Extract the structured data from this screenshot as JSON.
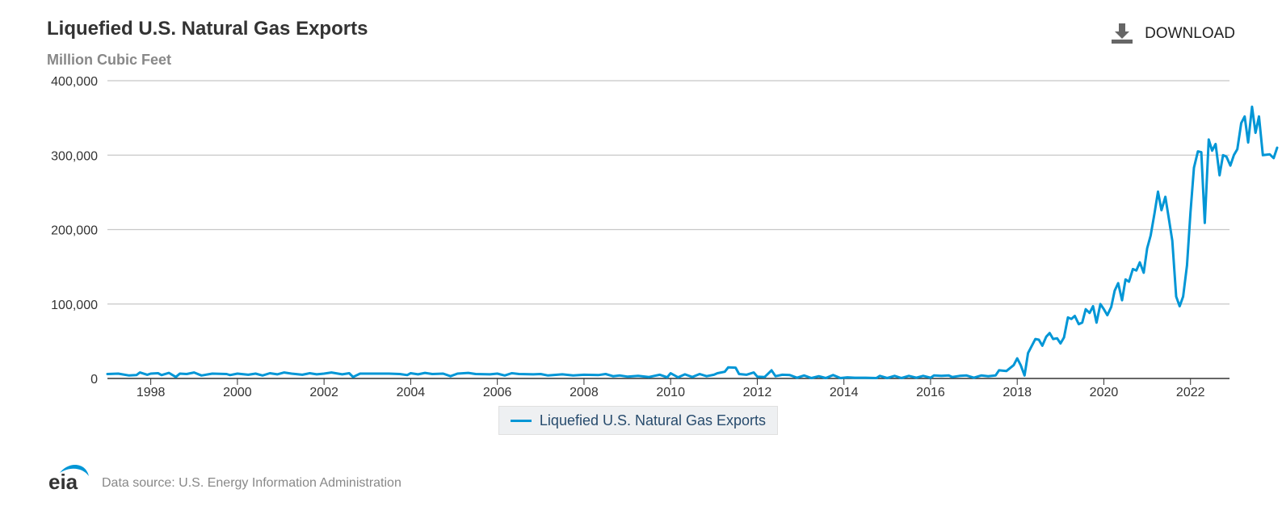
{
  "header": {
    "title": "Liquefied U.S. Natural Gas Exports",
    "subtitle": "Million Cubic Feet",
    "download_label": "DOWNLOAD"
  },
  "footer": {
    "logo_text": "eia",
    "source": "Data source: U.S. Energy Information Administration"
  },
  "colors": {
    "series": "#0096d6",
    "grid": "#c8c8c8",
    "axis": "#333333"
  },
  "chart_data": {
    "type": "line",
    "title": "Liquefied U.S. Natural Gas Exports",
    "subtitle": "Million Cubic Feet",
    "xlabel": "",
    "ylabel": "",
    "xlim": [
      1997,
      2022.9
    ],
    "ylim": [
      0,
      400000
    ],
    "yticks": [
      0,
      100000,
      200000,
      300000,
      400000
    ],
    "ytick_labels": [
      "0",
      "100,000",
      "200,000",
      "300,000",
      "400,000"
    ],
    "xticks": [
      1998,
      2000,
      2002,
      2004,
      2006,
      2008,
      2010,
      2012,
      2014,
      2016,
      2018,
      2020,
      2022
    ],
    "xtick_labels": [
      "1998",
      "2000",
      "2002",
      "2004",
      "2006",
      "2008",
      "2010",
      "2012",
      "2014",
      "2016",
      "2018",
      "2020",
      "2022"
    ],
    "grid": true,
    "legend_position": "bottom-center",
    "series": [
      {
        "name": "Liquefied U.S. Natural Gas Exports",
        "color": "#0096d6",
        "points": [
          [
            1997.0,
            6000
          ],
          [
            1997.25,
            6500
          ],
          [
            1997.5,
            4000
          ],
          [
            1997.67,
            4500
          ],
          [
            1997.75,
            8000
          ],
          [
            1997.92,
            5000
          ],
          [
            1998.0,
            6500
          ],
          [
            1998.17,
            7000
          ],
          [
            1998.25,
            4500
          ],
          [
            1998.42,
            7500
          ],
          [
            1998.58,
            2000
          ],
          [
            1998.67,
            6500
          ],
          [
            1998.83,
            6000
          ],
          [
            1999.0,
            8000
          ],
          [
            1999.17,
            4000
          ],
          [
            1999.42,
            6500
          ],
          [
            1999.75,
            6000
          ],
          [
            1999.83,
            4500
          ],
          [
            2000.0,
            6500
          ],
          [
            2000.25,
            5000
          ],
          [
            2000.42,
            6500
          ],
          [
            2000.58,
            4000
          ],
          [
            2000.75,
            7000
          ],
          [
            2000.92,
            5500
          ],
          [
            2001.08,
            8000
          ],
          [
            2001.25,
            6500
          ],
          [
            2001.5,
            5000
          ],
          [
            2001.67,
            7000
          ],
          [
            2001.83,
            5500
          ],
          [
            2002.0,
            6500
          ],
          [
            2002.17,
            8000
          ],
          [
            2002.42,
            5500
          ],
          [
            2002.58,
            7000
          ],
          [
            2002.67,
            2000
          ],
          [
            2002.83,
            6500
          ],
          [
            2003.0,
            6500
          ],
          [
            2003.5,
            6500
          ],
          [
            2003.75,
            6000
          ],
          [
            2003.92,
            4500
          ],
          [
            2004.0,
            7000
          ],
          [
            2004.17,
            5500
          ],
          [
            2004.33,
            7500
          ],
          [
            2004.5,
            6000
          ],
          [
            2004.75,
            6500
          ],
          [
            2004.92,
            3000
          ],
          [
            2005.08,
            6500
          ],
          [
            2005.33,
            7500
          ],
          [
            2005.5,
            6000
          ],
          [
            2005.83,
            5500
          ],
          [
            2006.0,
            6500
          ],
          [
            2006.17,
            4000
          ],
          [
            2006.33,
            7000
          ],
          [
            2006.5,
            6000
          ],
          [
            2006.83,
            5500
          ],
          [
            2007.0,
            6000
          ],
          [
            2007.17,
            4000
          ],
          [
            2007.5,
            5500
          ],
          [
            2007.75,
            4000
          ],
          [
            2008.0,
            5000
          ],
          [
            2008.33,
            4500
          ],
          [
            2008.5,
            6000
          ],
          [
            2008.67,
            3000
          ],
          [
            2008.83,
            4000
          ],
          [
            2009.0,
            2500
          ],
          [
            2009.25,
            3500
          ],
          [
            2009.5,
            2000
          ],
          [
            2009.75,
            5000
          ],
          [
            2009.92,
            1500
          ],
          [
            2010.0,
            7000
          ],
          [
            2010.17,
            1500
          ],
          [
            2010.33,
            5500
          ],
          [
            2010.5,
            2000
          ],
          [
            2010.67,
            6000
          ],
          [
            2010.83,
            3000
          ],
          [
            2011.0,
            5000
          ],
          [
            2011.08,
            7000
          ],
          [
            2011.25,
            9000
          ],
          [
            2011.33,
            15000
          ],
          [
            2011.5,
            14500
          ],
          [
            2011.58,
            6000
          ],
          [
            2011.75,
            5000
          ],
          [
            2011.92,
            8000
          ],
          [
            2012.0,
            2500
          ],
          [
            2012.17,
            2000
          ],
          [
            2012.33,
            11000
          ],
          [
            2012.42,
            3000
          ],
          [
            2012.58,
            5000
          ],
          [
            2012.75,
            4500
          ],
          [
            2012.92,
            1000
          ],
          [
            2013.08,
            4000
          ],
          [
            2013.25,
            500
          ],
          [
            2013.42,
            3000
          ],
          [
            2013.58,
            500
          ],
          [
            2013.75,
            4500
          ],
          [
            2013.92,
            500
          ],
          [
            2014.08,
            1500
          ],
          [
            2014.25,
            1000
          ],
          [
            2014.5,
            1000
          ],
          [
            2014.75,
            500
          ],
          [
            2014.83,
            3500
          ],
          [
            2015.0,
            500
          ],
          [
            2015.17,
            3500
          ],
          [
            2015.33,
            500
          ],
          [
            2015.5,
            3500
          ],
          [
            2015.67,
            1000
          ],
          [
            2015.83,
            3500
          ],
          [
            2016.0,
            1000
          ],
          [
            2016.08,
            4000
          ],
          [
            2016.25,
            3500
          ],
          [
            2016.42,
            4000
          ],
          [
            2016.5,
            2000
          ],
          [
            2016.67,
            3500
          ],
          [
            2016.83,
            4000
          ],
          [
            2017.0,
            1000
          ],
          [
            2017.17,
            4000
          ],
          [
            2017.33,
            3000
          ],
          [
            2017.5,
            4000
          ],
          [
            2017.58,
            11000
          ],
          [
            2017.75,
            10000
          ],
          [
            2017.92,
            18000
          ],
          [
            2018.0,
            27000
          ],
          [
            2018.08,
            18000
          ],
          [
            2018.17,
            4000
          ],
          [
            2018.25,
            34000
          ],
          [
            2018.42,
            53000
          ],
          [
            2018.5,
            52000
          ],
          [
            2018.58,
            44000
          ],
          [
            2018.67,
            56000
          ],
          [
            2018.75,
            61000
          ],
          [
            2018.83,
            53000
          ],
          [
            2018.92,
            54000
          ],
          [
            2019.0,
            47000
          ],
          [
            2019.08,
            55000
          ],
          [
            2019.17,
            82000
          ],
          [
            2019.25,
            80000
          ],
          [
            2019.33,
            84000
          ],
          [
            2019.42,
            73000
          ],
          [
            2019.5,
            75000
          ],
          [
            2019.58,
            93000
          ],
          [
            2019.67,
            88000
          ],
          [
            2019.75,
            97000
          ],
          [
            2019.83,
            75000
          ],
          [
            2019.92,
            100000
          ],
          [
            2020.0,
            93000
          ],
          [
            2020.08,
            85000
          ],
          [
            2020.17,
            96000
          ],
          [
            2020.25,
            118000
          ],
          [
            2020.33,
            128000
          ],
          [
            2020.42,
            105000
          ],
          [
            2020.5,
            133000
          ],
          [
            2020.58,
            130000
          ],
          [
            2020.67,
            147000
          ],
          [
            2020.75,
            145000
          ],
          [
            2020.83,
            156000
          ],
          [
            2020.92,
            142000
          ],
          [
            2021.0,
            175000
          ],
          [
            2021.08,
            192000
          ],
          [
            2021.17,
            222000
          ],
          [
            2021.25,
            251000
          ],
          [
            2021.33,
            226000
          ],
          [
            2021.42,
            244000
          ],
          [
            2021.5,
            215000
          ],
          [
            2021.58,
            185000
          ],
          [
            2021.67,
            110000
          ],
          [
            2021.75,
            97000
          ],
          [
            2021.83,
            110000
          ],
          [
            2021.92,
            152000
          ],
          [
            2022.0,
            223000
          ],
          [
            2022.08,
            283000
          ],
          [
            2022.17,
            305000
          ],
          [
            2022.25,
            304000
          ],
          [
            2022.33,
            209000
          ],
          [
            2022.42,
            321000
          ],
          [
            2022.5,
            306000
          ],
          [
            2022.58,
            315000
          ],
          [
            2022.67,
            273000
          ],
          [
            2022.75,
            300000
          ],
          [
            2022.83,
            298000
          ],
          [
            2022.92,
            286000
          ],
          [
            2023.0,
            300000
          ],
          [
            2023.08,
            308000
          ],
          [
            2023.17,
            343000
          ],
          [
            2023.25,
            352000
          ],
          [
            2023.33,
            317000
          ],
          [
            2023.42,
            365000
          ],
          [
            2023.5,
            330000
          ],
          [
            2023.58,
            352000
          ],
          [
            2023.67,
            300000
          ],
          [
            2023.83,
            301000
          ],
          [
            2023.92,
            296000
          ],
          [
            2024.0,
            310000
          ]
        ]
      }
    ]
  }
}
